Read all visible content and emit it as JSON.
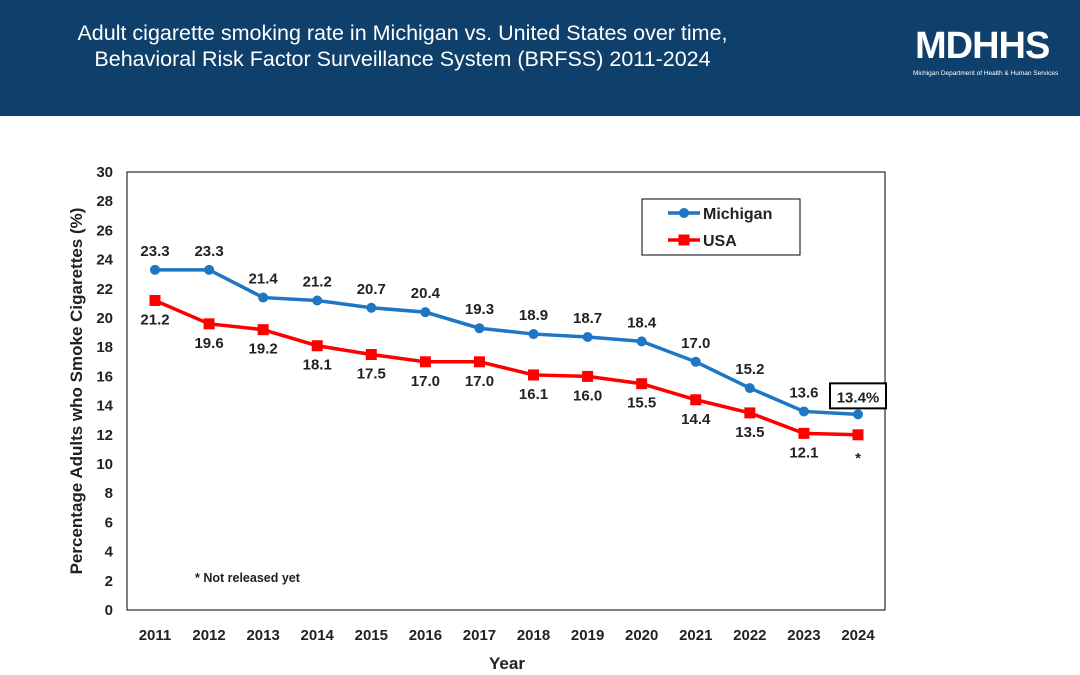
{
  "header": {
    "title_line1": "Adult cigarette smoking rate in Michigan vs. United States over time,",
    "title_line2": "Behavioral Risk Factor Surveillance System (BRFSS) 2011-2024",
    "logo_text": "MDHHS",
    "logo_subtitle": "Michigan Department of Health & Human Services",
    "background": "#0f3f6b"
  },
  "chart_data": {
    "type": "line",
    "title": "",
    "xlabel": "Year",
    "ylabel": "Percentage Adults who Smoke Cigarettes (%)",
    "ylim": [
      0,
      30
    ],
    "yticks": [
      0,
      2,
      4,
      6,
      8,
      10,
      12,
      14,
      16,
      18,
      20,
      22,
      24,
      26,
      28,
      30
    ],
    "x": [
      "2011",
      "2012",
      "2013",
      "2014",
      "2015",
      "2016",
      "2017",
      "2018",
      "2019",
      "2020",
      "2021",
      "2022",
      "2023",
      "2024"
    ],
    "grid": false,
    "legend_position": "top-right",
    "series": [
      {
        "name": "Michigan",
        "color": "#1f77c4",
        "marker": "circle",
        "values": [
          23.3,
          23.3,
          21.4,
          21.2,
          20.7,
          20.4,
          19.3,
          18.9,
          18.7,
          18.4,
          17.0,
          15.2,
          13.6,
          13.4
        ],
        "labels": [
          "23.3",
          "23.3",
          "21.4",
          "21.2",
          "20.7",
          "20.4",
          "19.3",
          "18.9",
          "18.7",
          "18.4",
          "17.0",
          "15.2",
          "13.6",
          "13.4%"
        ]
      },
      {
        "name": "USA",
        "color": "#ff0000",
        "marker": "square",
        "values": [
          21.2,
          19.6,
          19.2,
          18.1,
          17.5,
          17.0,
          17.0,
          16.1,
          16.0,
          15.5,
          14.4,
          13.5,
          12.1,
          12.0
        ],
        "labels": [
          "21.2",
          "19.6",
          "19.2",
          "18.1",
          "17.5",
          "17.0",
          "17.0",
          "16.1",
          "16.0",
          "15.5",
          "14.4",
          "13.5",
          "12.1",
          "*"
        ]
      }
    ],
    "annotation": "* Not released yet"
  }
}
